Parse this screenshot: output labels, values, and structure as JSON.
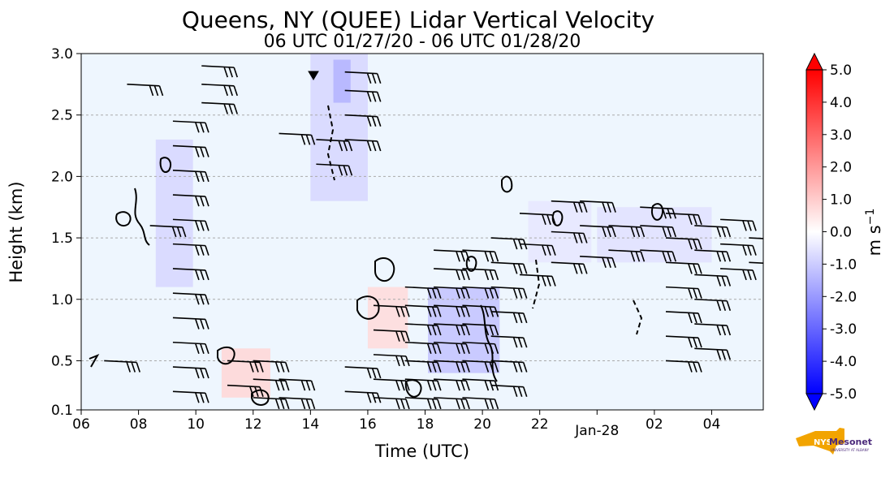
{
  "chart_data": {
    "type": "heatmap",
    "title": "Queens, NY (QUEE) Lidar Vertical Velocity",
    "subtitle": "06 UTC 01/27/20 - 06 UTC 01/28/20",
    "xlabel": "Time (UTC)",
    "ylabel": "Height (km)",
    "x_ticks": [
      "06",
      "08",
      "10",
      "12",
      "14",
      "16",
      "18",
      "20",
      "22",
      "Jan-28",
      "02",
      "04"
    ],
    "x_range_hours": [
      6,
      29.8
    ],
    "y_ticks": [
      "0.1",
      "0.5",
      "1.0",
      "1.5",
      "2.0",
      "2.5",
      "3.0"
    ],
    "y_tick_values": [
      0.1,
      0.5,
      1.0,
      1.5,
      2.0,
      2.5,
      3.0
    ],
    "ylim": [
      0.1,
      3.0
    ],
    "grid": "horizontal dashed",
    "colorbar": {
      "label": "m s",
      "label_exponent": "−1",
      "tick_labels": [
        "5.0",
        "4.0",
        "3.0",
        "2.0",
        "1.0",
        "0.0",
        "-1.0",
        "-2.0",
        "-3.0",
        "-4.0",
        "-5.0"
      ],
      "tick_values": [
        5,
        4,
        3,
        2,
        1,
        0,
        -1,
        -2,
        -3,
        -4,
        -5
      ],
      "min": -5.0,
      "max": 5.0,
      "extend": "both",
      "cmap": "bwr"
    },
    "wind_barb_columns": [
      {
        "x": 6.8,
        "heights": [
          0.5
        ]
      },
      {
        "x": 7.6,
        "heights": [
          2.75
        ]
      },
      {
        "x": 8.4,
        "heights": [
          1.6
        ]
      },
      {
        "x": 9.2,
        "heights": [
          0.25,
          0.45,
          0.65,
          0.85,
          1.05,
          1.25,
          1.45,
          1.65,
          1.85,
          2.05,
          2.25,
          2.45
        ]
      },
      {
        "x": 10.2,
        "heights": [
          2.6,
          2.75,
          2.9
        ]
      },
      {
        "x": 11.1,
        "heights": [
          0.3,
          0.5
        ]
      },
      {
        "x": 12.0,
        "heights": [
          0.2,
          0.35,
          0.5
        ]
      },
      {
        "x": 12.9,
        "heights": [
          0.2,
          0.35,
          2.35
        ]
      },
      {
        "x": 14.2,
        "heights": [
          2.1,
          2.3
        ]
      },
      {
        "x": 15.2,
        "heights": [
          0.25,
          0.45,
          2.3,
          2.5,
          2.7,
          2.85
        ]
      },
      {
        "x": 16.2,
        "heights": [
          0.2,
          0.35,
          0.55,
          0.75,
          0.95
        ]
      },
      {
        "x": 17.3,
        "heights": [
          0.2,
          0.35,
          0.5,
          0.65,
          0.8,
          0.95,
          1.1
        ]
      },
      {
        "x": 18.3,
        "heights": [
          0.2,
          0.35,
          0.5,
          0.65,
          0.8,
          0.95,
          1.1,
          1.25,
          1.4
        ]
      },
      {
        "x": 19.3,
        "heights": [
          0.2,
          0.35,
          0.5,
          0.65,
          0.8,
          0.95,
          1.1,
          1.25,
          1.4
        ]
      },
      {
        "x": 20.3,
        "heights": [
          0.3,
          0.5,
          0.7,
          0.9,
          1.1,
          1.3,
          1.5
        ]
      },
      {
        "x": 21.3,
        "heights": [
          1.2,
          1.45,
          1.7
        ]
      },
      {
        "x": 22.4,
        "heights": [
          1.3,
          1.55,
          1.8
        ]
      },
      {
        "x": 23.4,
        "heights": [
          1.35,
          1.6,
          1.8
        ]
      },
      {
        "x": 24.4,
        "heights": [
          1.4,
          1.6
        ]
      },
      {
        "x": 25.5,
        "heights": [
          1.4,
          1.6,
          1.75
        ]
      },
      {
        "x": 26.4,
        "heights": [
          0.5,
          0.7,
          0.9,
          1.1,
          1.3,
          1.5,
          1.7
        ]
      },
      {
        "x": 27.4,
        "heights": [
          0.6,
          0.8,
          1.0,
          1.2,
          1.4,
          1.6
        ]
      },
      {
        "x": 28.3,
        "heights": [
          1.25,
          1.45,
          1.65
        ]
      },
      {
        "x": 29.3,
        "heights": [
          1.3,
          1.5
        ]
      }
    ],
    "velocity_patches": [
      {
        "x0": 8.6,
        "x1": 9.9,
        "y0": 1.1,
        "y1": 2.3,
        "w": -0.8
      },
      {
        "x0": 14.0,
        "x1": 16.0,
        "y0": 1.8,
        "y1": 3.0,
        "w": -0.8
      },
      {
        "x0": 14.8,
        "x1": 15.4,
        "y0": 2.6,
        "y1": 2.95,
        "w": -1.5
      },
      {
        "x0": 10.9,
        "x1": 12.6,
        "y0": 0.2,
        "y1": 0.6,
        "w": 0.8
      },
      {
        "x0": 16.0,
        "x1": 17.4,
        "y0": 0.6,
        "y1": 1.1,
        "w": 0.7
      },
      {
        "x0": 18.1,
        "x1": 20.6,
        "y0": 0.4,
        "y1": 1.1,
        "w": -1.2
      },
      {
        "x0": 21.6,
        "x1": 23.8,
        "y0": 1.3,
        "y1": 1.8,
        "w": -0.5
      },
      {
        "x0": 24.0,
        "x1": 28.0,
        "y0": 1.3,
        "y1": 1.75,
        "w": -0.6
      }
    ]
  },
  "branding": {
    "logo_text": "NYS",
    "logo_name": "Mesonet",
    "logo_subtitle": "UNIVERSITY AT ALBANY"
  }
}
